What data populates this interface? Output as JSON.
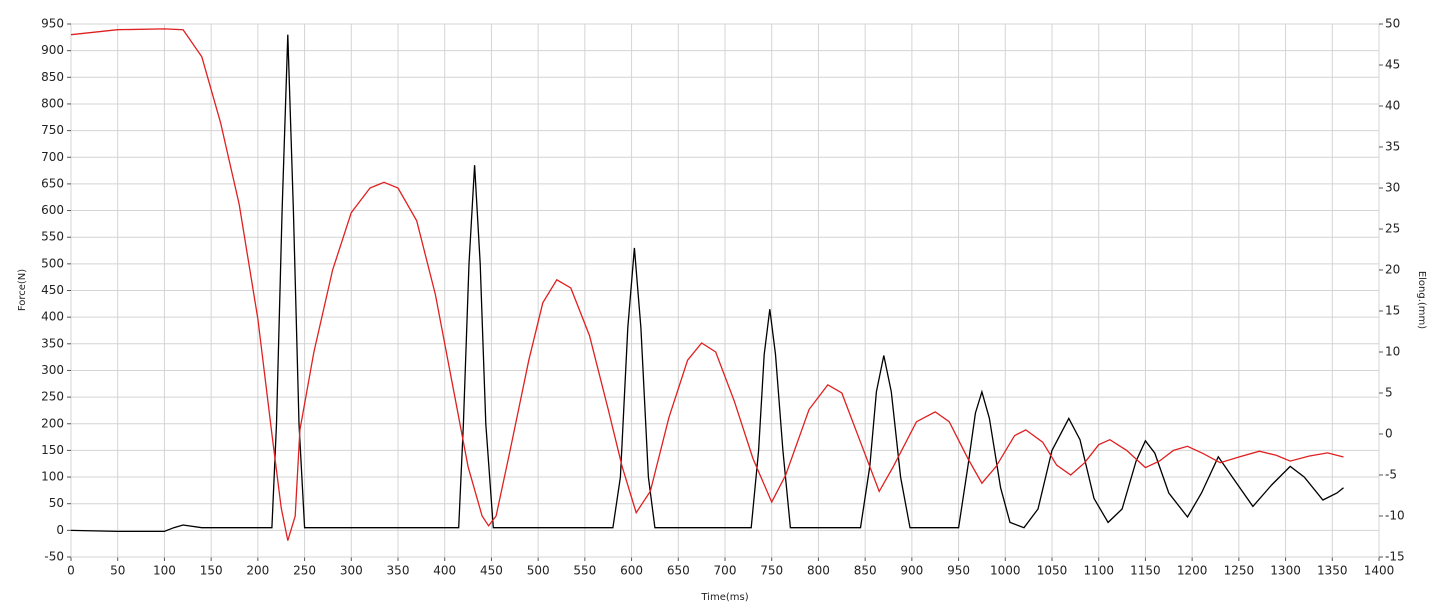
{
  "chart_data": {
    "type": "line",
    "x_label": "Time(ms)",
    "y_label": "Force(N)",
    "y2_label": "Elong.(mm)",
    "grid": true,
    "xlim": [
      0,
      1400
    ],
    "xticks": [
      0,
      50,
      100,
      150,
      200,
      250,
      300,
      350,
      400,
      450,
      500,
      550,
      600,
      650,
      700,
      750,
      800,
      850,
      900,
      950,
      1000,
      1050,
      1100,
      1150,
      1200,
      1250,
      1300,
      1350,
      1400
    ],
    "ylim": [
      -50,
      950
    ],
    "yticks": [
      -50,
      0,
      50,
      100,
      150,
      200,
      250,
      300,
      350,
      400,
      450,
      500,
      550,
      600,
      650,
      700,
      750,
      800,
      850,
      900,
      950
    ],
    "y2lim": [
      -15,
      50
    ],
    "y2ticks": [
      -15,
      -10,
      -5,
      0,
      5,
      10,
      15,
      20,
      25,
      30,
      35,
      40,
      45,
      50
    ],
    "series": [
      {
        "name": "Force",
        "color": "#000000",
        "x": [
          0,
          50,
          100,
          110,
          120,
          140,
          200,
          215,
          220,
          226,
          232,
          238,
          244,
          250,
          300,
          350,
          400,
          415,
          420,
          426,
          432,
          438,
          444,
          452,
          500,
          580,
          588,
          596,
          603,
          610,
          618,
          625,
          700,
          728,
          736,
          742,
          748,
          754,
          762,
          770,
          800,
          845,
          855,
          862,
          870,
          878,
          888,
          898,
          950,
          960,
          968,
          975,
          983,
          995,
          1005,
          1020,
          1035,
          1050,
          1068,
          1080,
          1095,
          1110,
          1125,
          1140,
          1150,
          1160,
          1175,
          1195,
          1210,
          1228,
          1245,
          1265,
          1285,
          1305,
          1320,
          1340,
          1355,
          1362
        ],
        "values": [
          0,
          -2,
          -2,
          5,
          10,
          5,
          5,
          5,
          200,
          600,
          930,
          600,
          200,
          5,
          5,
          5,
          5,
          5,
          200,
          500,
          685,
          500,
          200,
          5,
          5,
          5,
          100,
          380,
          530,
          380,
          100,
          5,
          5,
          5,
          150,
          330,
          415,
          330,
          150,
          5,
          5,
          5,
          120,
          260,
          328,
          260,
          100,
          5,
          5,
          120,
          220,
          260,
          210,
          80,
          15,
          5,
          40,
          150,
          210,
          170,
          60,
          15,
          40,
          130,
          168,
          145,
          70,
          25,
          70,
          138,
          95,
          45,
          85,
          120,
          100,
          57,
          70,
          80
        ]
      },
      {
        "name": "Elong.",
        "color": "#e02020",
        "axis": "y2",
        "x": [
          0,
          50,
          100,
          120,
          140,
          160,
          180,
          200,
          215,
          225,
          232,
          240,
          245,
          260,
          280,
          300,
          320,
          335,
          350,
          370,
          390,
          410,
          425,
          440,
          447,
          455,
          470,
          490,
          505,
          520,
          535,
          555,
          575,
          590,
          605,
          620,
          640,
          660,
          675,
          690,
          710,
          730,
          750,
          765,
          790,
          810,
          825,
          845,
          865,
          880,
          905,
          925,
          940,
          960,
          975,
          990,
          1010,
          1022,
          1040,
          1055,
          1070,
          1085,
          1100,
          1112,
          1130,
          1150,
          1165,
          1180,
          1195,
          1212,
          1230,
          1250,
          1272,
          1290,
          1305,
          1325,
          1345,
          1362
        ],
        "values": [
          48.7,
          49.3,
          49.4,
          49.3,
          46,
          38,
          28,
          14,
          0,
          -9,
          -13,
          -10,
          0.5,
          10,
          20,
          27,
          30,
          30.7,
          30,
          26,
          17,
          5,
          -4,
          -10,
          -11.2,
          -10,
          -2,
          9,
          16,
          18.8,
          17.8,
          12,
          3,
          -4,
          -9.6,
          -7,
          2,
          9,
          11.1,
          10,
          4,
          -3,
          -8.3,
          -5,
          3,
          6,
          5,
          -1,
          -7,
          -4,
          1.5,
          2.7,
          1.5,
          -3,
          -6,
          -4,
          -0.2,
          0.5,
          -1,
          -3.8,
          -5,
          -3.5,
          -1.3,
          -0.7,
          -2,
          -4.1,
          -3.3,
          -2,
          -1.5,
          -2.4,
          -3.5,
          -2.8,
          -2.1,
          -2.6,
          -3.3,
          -2.7,
          -2.3,
          -2.8
        ]
      }
    ]
  }
}
